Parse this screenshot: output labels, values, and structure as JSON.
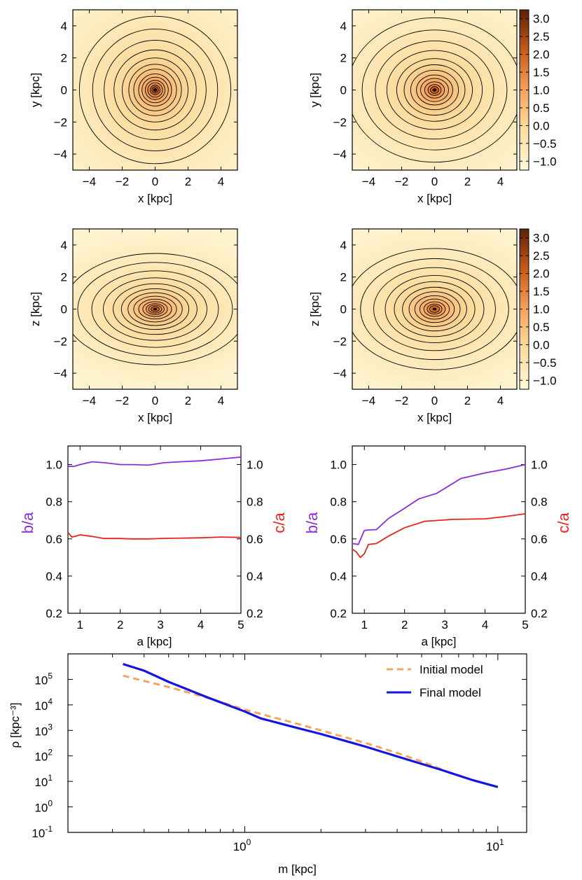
{
  "figure_colors": {
    "purple": "#8a2be2",
    "red": "#e8231d",
    "orange_dash": "#f4a460",
    "blue": "#1414e6",
    "cmap_low": "#fff8d8",
    "cmap_mid": "#f5a25a",
    "cmap_high": "#6b2a0a"
  },
  "chart_data": [
    {
      "id": "map-xy-initial",
      "type": "heatmap",
      "panel": "top-left",
      "title": "",
      "xlabel": "x [kpc]",
      "ylabel": "y [kpc]",
      "xlim": [
        -5,
        5
      ],
      "ylim": [
        -5,
        5
      ],
      "xticks": [
        "−4",
        "−2",
        "0",
        "2",
        "4"
      ],
      "yticks": [
        "4",
        "2",
        "0",
        "−2",
        "−4"
      ],
      "center": [
        0,
        0
      ],
      "axis_ratio": 1.0,
      "contour_radii_kpc": [
        0.2,
        0.3,
        0.45,
        0.6,
        0.8,
        1.0,
        1.3,
        1.6,
        2.0,
        2.5,
        3.1,
        3.8,
        4.6
      ]
    },
    {
      "id": "map-xy-final",
      "type": "heatmap",
      "panel": "top-right",
      "title": "",
      "xlabel": "x [kpc]",
      "ylabel": "y [kpc]",
      "xlim": [
        -5,
        5
      ],
      "ylim": [
        -5,
        5
      ],
      "xticks": [
        "−4",
        "−2",
        "0",
        "2",
        "4"
      ],
      "yticks": [
        "4",
        "2",
        "0",
        "−2",
        "−4"
      ],
      "center": [
        0,
        0
      ],
      "axis_ratio": 0.85,
      "contour_radii_kpc": [
        0.25,
        0.4,
        0.6,
        0.85,
        1.1,
        1.45,
        1.85,
        2.3,
        2.9,
        3.6,
        4.4,
        5.3
      ],
      "colorbar": {
        "range": [
          -1.25,
          3.25
        ],
        "ticks": [
          "3.0",
          "2.5",
          "2.0",
          "1.5",
          "1.0",
          "0.5",
          "0.0",
          "−0.5",
          "−1.0"
        ]
      }
    },
    {
      "id": "map-xz-initial",
      "type": "heatmap",
      "panel": "middle-left",
      "title": "",
      "xlabel": "x [kpc]",
      "ylabel": "z [kpc]",
      "xlim": [
        -5,
        5
      ],
      "ylim": [
        -5,
        5
      ],
      "xticks": [
        "−4",
        "−2",
        "0",
        "2",
        "4"
      ],
      "yticks": [
        "4",
        "2",
        "0",
        "−2",
        "−4"
      ],
      "center": [
        0,
        0
      ],
      "axis_ratio": 0.62,
      "contour_radii_kpc": [
        0.25,
        0.4,
        0.55,
        0.75,
        1.0,
        1.3,
        1.65,
        2.05,
        2.55,
        3.15,
        3.85,
        4.7,
        5.6
      ]
    },
    {
      "id": "map-xz-final",
      "type": "heatmap",
      "panel": "middle-right",
      "title": "",
      "xlabel": "x [kpc]",
      "ylabel": "z [kpc]",
      "xlim": [
        -5,
        5
      ],
      "ylim": [
        -5,
        5
      ],
      "xticks": [
        "−4",
        "−2",
        "0",
        "2",
        "4"
      ],
      "yticks": [
        "4",
        "2",
        "0",
        "−2",
        "−4"
      ],
      "center": [
        0,
        0
      ],
      "axis_ratio": 0.7,
      "contour_radii_kpc": [
        0.3,
        0.45,
        0.65,
        0.9,
        1.2,
        1.55,
        1.95,
        2.45,
        3.0,
        3.7,
        4.5,
        5.4
      ],
      "colorbar": {
        "range": [
          -1.25,
          3.25
        ],
        "ticks": [
          "3.0",
          "2.5",
          "2.0",
          "1.5",
          "1.0",
          "0.5",
          "0.0",
          "−0.5",
          "−1.0"
        ]
      }
    },
    {
      "id": "axis-ratio-initial",
      "type": "line",
      "panel": "lower-left",
      "title": "",
      "xlabel": "a [kpc]",
      "ylabel": "b/a",
      "ylabel_right": "c/a",
      "xlim": [
        0.7,
        5.0
      ],
      "ylim": [
        0.2,
        1.1
      ],
      "xticks": [
        "1",
        "2",
        "3",
        "4",
        "5"
      ],
      "yticks": [
        "1.0",
        "0.8",
        "0.6",
        "0.4",
        "0.2"
      ],
      "series": [
        {
          "name": "b/a",
          "color": "#8a2be2",
          "x": [
            0.7,
            0.85,
            1.0,
            1.3,
            1.6,
            2.0,
            2.3,
            2.7,
            3.1,
            3.5,
            4.0,
            4.5,
            5.0
          ],
          "y": [
            0.99,
            0.99,
            1.0,
            1.015,
            1.01,
            1.0,
            1.0,
            0.997,
            1.01,
            1.015,
            1.02,
            1.03,
            1.04
          ]
        },
        {
          "name": "c/a",
          "color": "#e8231d",
          "x": [
            0.7,
            0.8,
            0.9,
            1.0,
            1.3,
            1.6,
            2.0,
            2.3,
            2.7,
            3.1,
            3.5,
            4.0,
            4.5,
            5.0
          ],
          "y": [
            0.635,
            0.61,
            0.615,
            0.622,
            0.613,
            0.602,
            0.602,
            0.6,
            0.6,
            0.603,
            0.604,
            0.606,
            0.61,
            0.608
          ]
        }
      ]
    },
    {
      "id": "axis-ratio-final",
      "type": "line",
      "panel": "lower-right",
      "title": "",
      "xlabel": "a [kpc]",
      "ylabel": "b/a",
      "ylabel_right": "c/a",
      "xlim": [
        0.7,
        5.0
      ],
      "ylim": [
        0.2,
        1.1
      ],
      "xticks": [
        "1",
        "2",
        "3",
        "4",
        "5"
      ],
      "yticks": [
        "1.0",
        "0.8",
        "0.6",
        "0.4",
        "0.2"
      ],
      "series": [
        {
          "name": "b/a",
          "color": "#8a2be2",
          "x": [
            0.7,
            0.85,
            1.0,
            1.1,
            1.3,
            1.6,
            2.0,
            2.35,
            2.8,
            3.4,
            4.0,
            4.5,
            5.0
          ],
          "y": [
            0.575,
            0.57,
            0.645,
            0.648,
            0.65,
            0.71,
            0.765,
            0.815,
            0.845,
            0.925,
            0.955,
            0.975,
            1.0
          ]
        },
        {
          "name": "c/a",
          "color": "#e8231d",
          "x": [
            0.7,
            0.8,
            0.9,
            1.0,
            1.1,
            1.3,
            1.6,
            2.0,
            2.5,
            3.2,
            4.0,
            4.5,
            5.0
          ],
          "y": [
            0.545,
            0.53,
            0.5,
            0.52,
            0.57,
            0.575,
            0.615,
            0.66,
            0.695,
            0.705,
            0.708,
            0.72,
            0.735
          ]
        }
      ]
    },
    {
      "id": "density-profile",
      "type": "line",
      "panel": "bottom",
      "title": "",
      "xlabel": "m [kpc]",
      "ylabel": "ρ [kpc⁻³]",
      "yscale": "log",
      "xscale": "log",
      "xlim": [
        0.2,
        13
      ],
      "ylim": [
        0.1,
        1000000
      ],
      "xtick_labels": [
        {
          "x": 1,
          "base": "10",
          "exp": "0"
        },
        {
          "x": 10,
          "base": "10",
          "exp": "1"
        }
      ],
      "ytick_labels": [
        {
          "y": 100000,
          "base": "10",
          "exp": "5"
        },
        {
          "y": 10000,
          "base": "10",
          "exp": "4"
        },
        {
          "y": 1000,
          "base": "10",
          "exp": "3"
        },
        {
          "y": 100,
          "base": "10",
          "exp": "2"
        },
        {
          "y": 10,
          "base": "10",
          "exp": "1"
        },
        {
          "y": 1,
          "base": "10",
          "exp": "0"
        },
        {
          "y": 0.1,
          "base": "10",
          "exp": "-1"
        }
      ],
      "legend": {
        "position": "top-right",
        "entries": [
          "Initial model",
          "Final model"
        ]
      },
      "series": [
        {
          "name": "Initial model",
          "color": "#f4a460",
          "dash": true,
          "x": [
            0.33,
            0.5,
            0.7,
            1.0,
            1.5,
            2.0,
            3.0,
            4.0,
            5.0,
            6.0
          ],
          "y": [
            140000,
            50000,
            20000,
            6500,
            2200,
            1000,
            320,
            130,
            60,
            30
          ]
        },
        {
          "name": "Final model",
          "color": "#1414e6",
          "dash": false,
          "x": [
            0.33,
            0.4,
            0.5,
            0.7,
            1.0,
            1.15,
            1.5,
            2.0,
            3.0,
            4.0,
            6.0,
            8.0,
            10.0
          ],
          "y": [
            400000,
            220000,
            80000,
            21000,
            5500,
            3000,
            1500,
            720,
            230,
            95,
            28,
            11,
            6
          ]
        }
      ]
    }
  ]
}
